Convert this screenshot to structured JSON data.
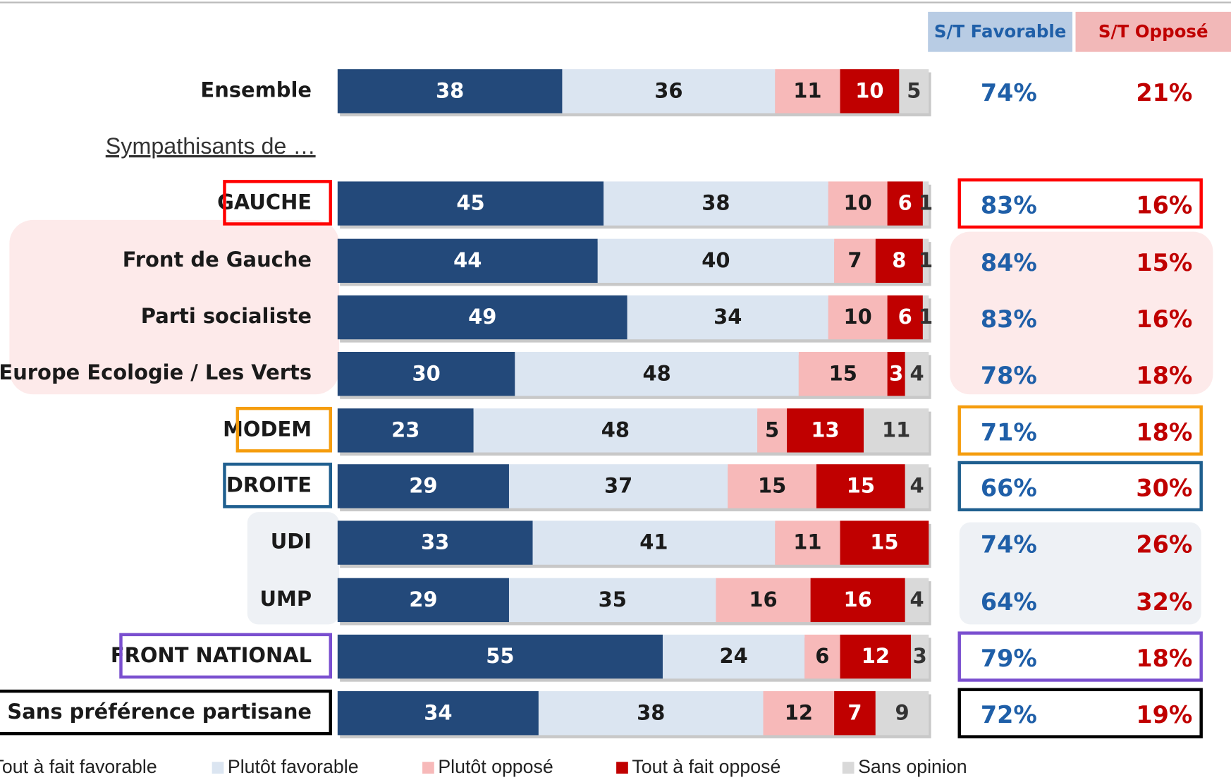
{
  "chart_data": {
    "type": "stacked_bar_horizontal",
    "categories": [
      "Ensemble",
      "GAUCHE",
      "Front de Gauche",
      "Parti socialiste",
      "Europe Ecologie / Les Verts",
      "MODEM",
      "DROITE",
      "UDI",
      "UMP",
      "FRONT NATIONAL",
      "Sans préférence partisane"
    ],
    "group_label": "Sympathisants de …",
    "category_box_colors": [
      null,
      "#ff0000",
      null,
      null,
      null,
      "#f59d0e",
      "#1f5f8f",
      null,
      null,
      "#7a4fcf",
      "#000000"
    ],
    "xlim": [
      0,
      100
    ],
    "series": [
      {
        "name": "Tout à fait favorable",
        "color": "#23497a",
        "values": [
          38,
          45,
          44,
          49,
          30,
          23,
          29,
          33,
          29,
          55,
          34
        ]
      },
      {
        "name": "Plutôt favorable",
        "color": "#dbe5f1",
        "values": [
          36,
          38,
          40,
          34,
          48,
          48,
          37,
          41,
          35,
          24,
          38
        ]
      },
      {
        "name": "Plutôt opposé",
        "color": "#f7b9b9",
        "values": [
          11,
          10,
          7,
          10,
          15,
          5,
          15,
          11,
          16,
          6,
          12
        ]
      },
      {
        "name": "Tout à fait opposé",
        "color": "#c00000",
        "values": [
          10,
          6,
          8,
          6,
          3,
          13,
          15,
          15,
          16,
          12,
          7
        ]
      },
      {
        "name": "Sans opinion",
        "color": "#d9d9d9",
        "values": [
          5,
          1,
          1,
          1,
          4,
          11,
          4,
          null,
          4,
          3,
          9
        ]
      }
    ],
    "summary_columns": [
      {
        "name": "S/T Favorable",
        "color": "#1f5fa8",
        "header_color": "#b8cce4",
        "values": [
          74,
          83,
          84,
          83,
          78,
          71,
          66,
          74,
          64,
          79,
          72
        ],
        "value_labels": [
          "74%",
          "83%",
          "84%",
          "83%",
          "78%",
          "71%",
          "66%",
          "74%",
          "64%",
          "79%",
          "72%"
        ]
      },
      {
        "name": "S/T Opposé",
        "color": "#c00000",
        "header_color": "#f2b8b8",
        "values": [
          21,
          16,
          15,
          16,
          18,
          18,
          30,
          26,
          32,
          18,
          19
        ],
        "value_labels": [
          "21%",
          "16%",
          "15%",
          "16%",
          "18%",
          "18%",
          "30%",
          "26%",
          "32%",
          "18%",
          "19%"
        ]
      }
    ]
  }
}
